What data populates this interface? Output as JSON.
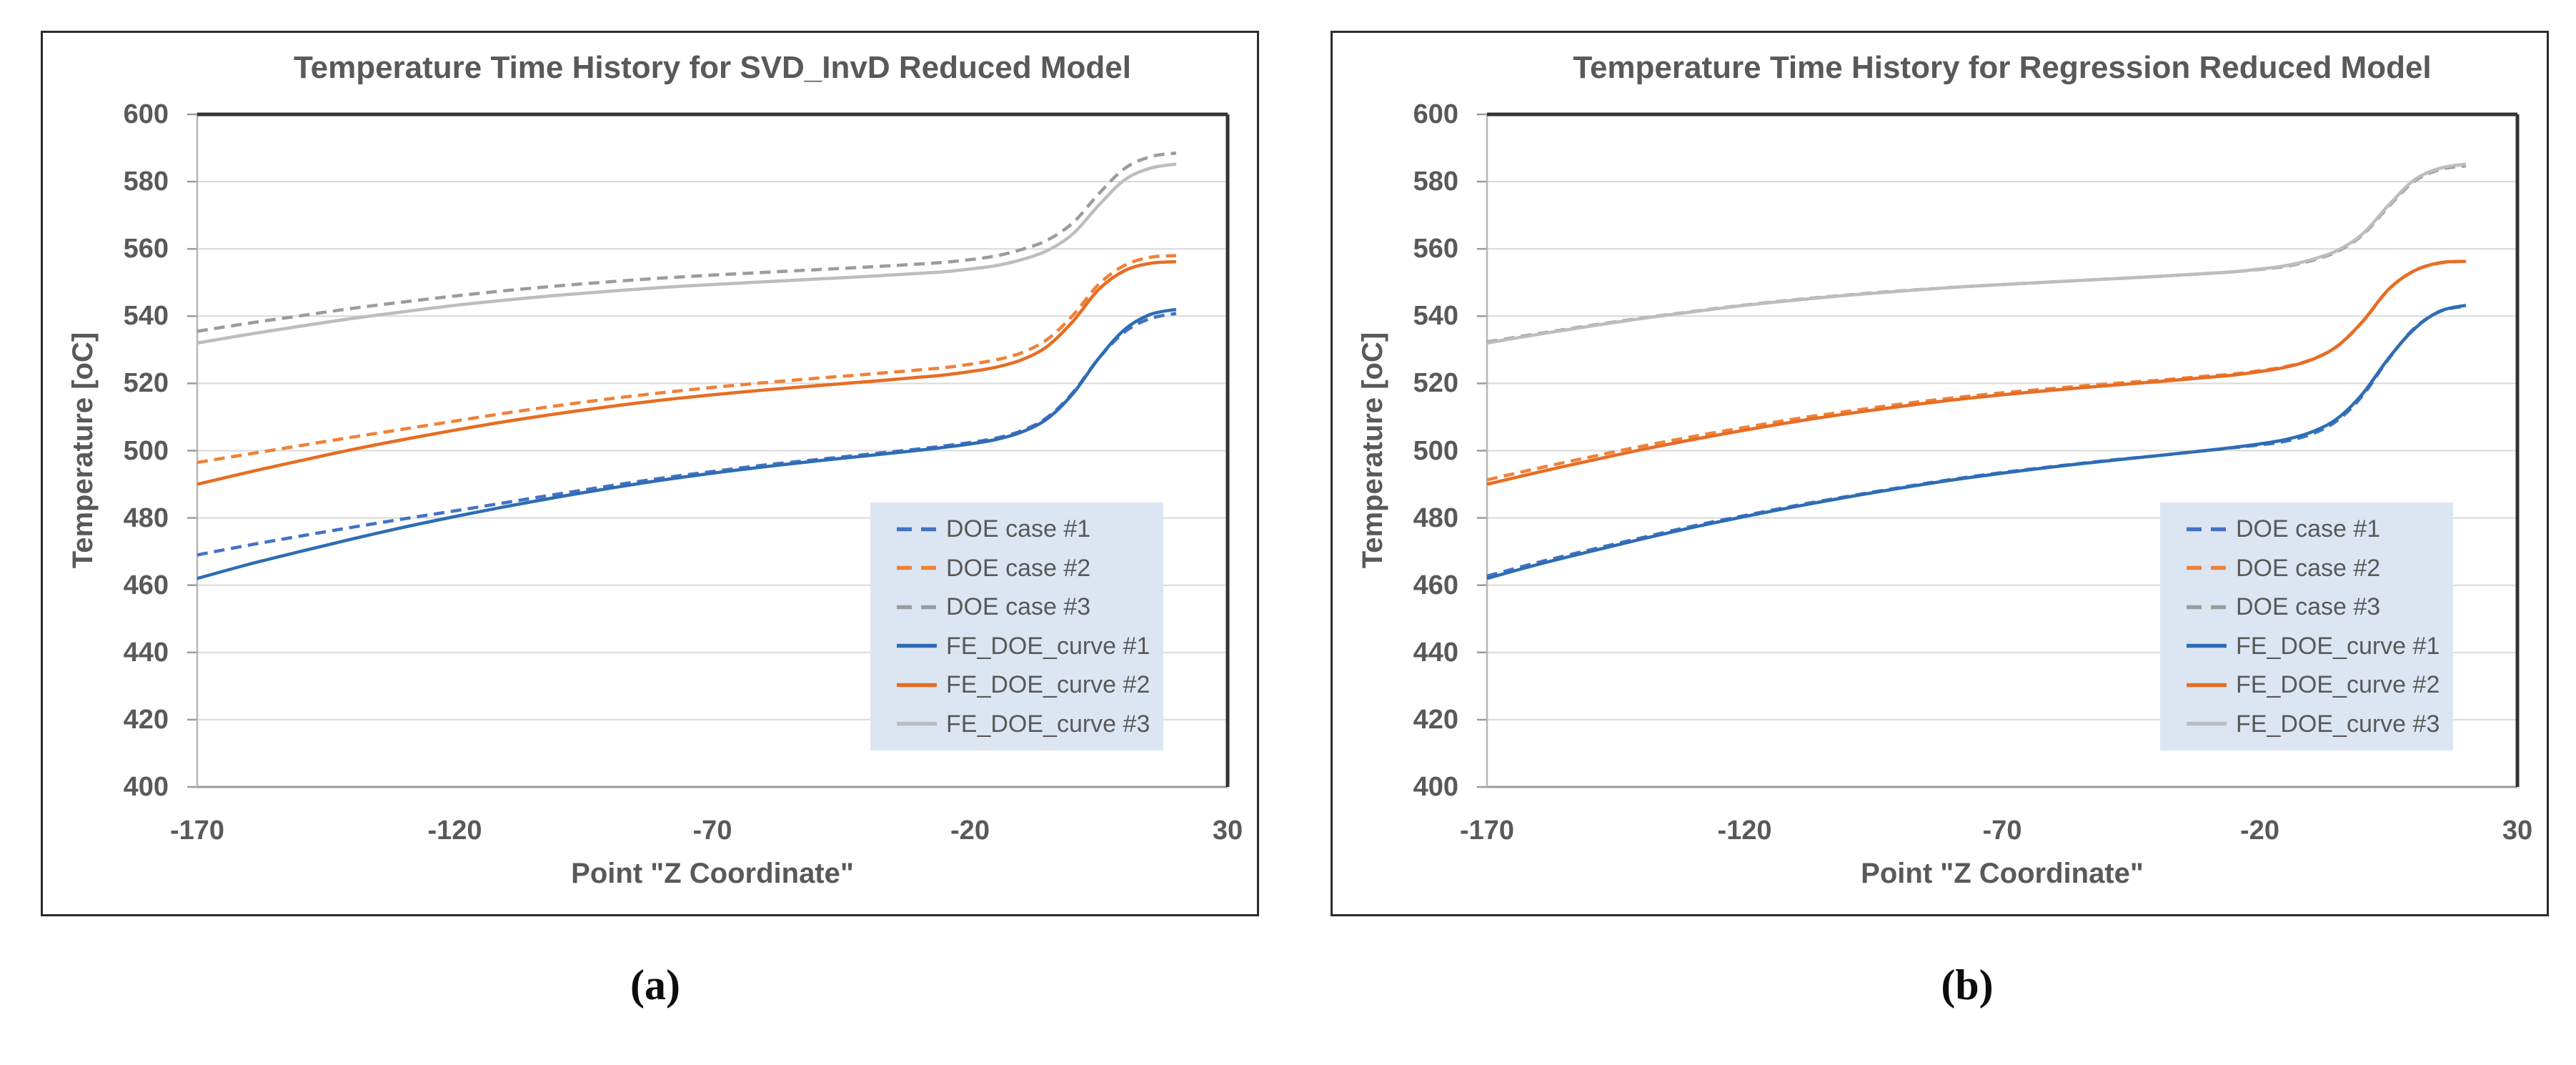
{
  "figure": {
    "caption_a": "(a)",
    "caption_b": "(b)"
  },
  "styles": {
    "legend_bg": "#dce6f2",
    "text_color": "#595959",
    "gridline_color": "#d9d9d9",
    "axis_dark": "#333333",
    "axis_gray": "#9b9b9b",
    "axis_light": "#b6b6b6"
  },
  "chart_data": [
    {
      "type": "line",
      "title": "Temperature Time History for SVD_InvD Reduced Model",
      "xlabel": "Point \"Z Coordinate\"",
      "ylabel": "Temperature [oC]",
      "xlim": [
        -170,
        30
      ],
      "ylim": [
        400,
        600
      ],
      "x_ticks": [
        -170,
        -120,
        -70,
        -20,
        30
      ],
      "y_ticks": [
        400,
        420,
        440,
        460,
        480,
        500,
        520,
        540,
        560,
        580,
        600
      ],
      "grid": "horizontal",
      "legend_position": "lower-right",
      "x": [
        -170,
        -160,
        -150,
        -140,
        -130,
        -120,
        -110,
        -100,
        -90,
        -80,
        -70,
        -60,
        -50,
        -40,
        -30,
        -25,
        -20,
        -15,
        -10,
        -5,
        0,
        5,
        10,
        15,
        20
      ],
      "series": [
        {
          "name": "DOE case #1",
          "color": "#4472c4",
          "style": "dashed",
          "y": [
            469,
            471.9,
            474.6,
            477.2,
            479.7,
            482.1,
            484.6,
            487.1,
            489.5,
            491.8,
            493.8,
            495.7,
            497.3,
            498.9,
            500.5,
            501.4,
            502.4,
            503.7,
            505.9,
            509.9,
            517.3,
            527.5,
            535.3,
            539.3,
            540.8
          ]
        },
        {
          "name": "DOE case #2",
          "color": "#f08138",
          "style": "dashed",
          "y": [
            496.5,
            499,
            501.5,
            504,
            506.4,
            508.8,
            511.2,
            513.4,
            515.4,
            517.2,
            518.8,
            520.2,
            521.5,
            522.7,
            524,
            524.7,
            525.7,
            527,
            529.1,
            533.1,
            540.3,
            549.5,
            555.1,
            557.5,
            558
          ]
        },
        {
          "name": "DOE case #3",
          "color": "#9c9c9c",
          "style": "dashed",
          "y": [
            535.5,
            537.9,
            540.1,
            542.3,
            544.2,
            546,
            547.6,
            549,
            550.2,
            551.3,
            552.2,
            553,
            553.8,
            554.6,
            555.5,
            556,
            556.8,
            557.9,
            559.8,
            562.6,
            567.8,
            576.4,
            583.9,
            587.4,
            588.5
          ]
        },
        {
          "name": "FE_DOE_curve #1",
          "color": "#2e6db4",
          "style": "solid",
          "y": [
            462,
            466.2,
            470,
            473.7,
            477.2,
            480.4,
            483.4,
            486.2,
            488.8,
            491.2,
            493.3,
            495.2,
            496.9,
            498.5,
            500.1,
            501,
            502,
            503.3,
            505.5,
            509.5,
            517,
            527.5,
            536,
            540.5,
            542
          ]
        },
        {
          "name": "FE_DOE_curve #2",
          "color": "#e76d24",
          "style": "solid",
          "y": [
            490,
            493.6,
            497,
            500.3,
            503.3,
            506.1,
            508.7,
            511,
            513.1,
            515,
            516.6,
            518,
            519.3,
            520.5,
            521.8,
            522.5,
            523.5,
            524.8,
            527,
            531,
            538.5,
            548,
            553.5,
            555.7,
            556.2
          ]
        },
        {
          "name": "FE_DOE_curve #3",
          "color": "#bdbdbd",
          "style": "solid",
          "y": [
            532,
            534.6,
            537,
            539.3,
            541.3,
            543.2,
            544.8,
            546.2,
            547.4,
            548.5,
            549.4,
            550.2,
            551,
            551.8,
            552.7,
            553.2,
            554,
            555,
            556.8,
            559.5,
            564.5,
            573,
            580.5,
            584,
            585.2
          ]
        }
      ]
    },
    {
      "type": "line",
      "title": "Temperature Time History for Regression Reduced Model",
      "xlabel": "Point \"Z Coordinate\"",
      "ylabel": "Temperature [oC]",
      "xlim": [
        -170,
        30
      ],
      "ylim": [
        400,
        600
      ],
      "x_ticks": [
        -170,
        -120,
        -70,
        -20,
        30
      ],
      "y_ticks": [
        400,
        420,
        440,
        460,
        480,
        500,
        520,
        540,
        560,
        580,
        600
      ],
      "grid": "horizontal",
      "legend_position": "lower-right",
      "x": [
        -170,
        -160,
        -150,
        -140,
        -130,
        -120,
        -110,
        -100,
        -90,
        -80,
        -70,
        -60,
        -50,
        -40,
        -30,
        -25,
        -20,
        -15,
        -10,
        -5,
        0,
        5,
        10,
        15,
        20
      ],
      "series": [
        {
          "name": "DOE case #1",
          "color": "#4472c4",
          "style": "dashed",
          "y": [
            462.7,
            466.8,
            470.5,
            474.1,
            477.6,
            480.7,
            483.7,
            486.4,
            489,
            491.4,
            493.5,
            495.3,
            497,
            498.5,
            500.1,
            500.9,
            501.7,
            502.8,
            504.9,
            508.9,
            516.5,
            527.3,
            536.4,
            541.4,
            543
          ]
        },
        {
          "name": "DOE case #2",
          "color": "#f08138",
          "style": "dashed",
          "y": [
            491.3,
            494.8,
            498.1,
            501.3,
            504.2,
            506.9,
            509.5,
            511.7,
            513.8,
            515.6,
            517.2,
            518.5,
            519.8,
            520.9,
            522.2,
            522.8,
            523.8,
            525,
            527.1,
            531,
            538.4,
            547.9,
            553.5,
            555.8,
            556.3
          ]
        },
        {
          "name": "DOE case #3",
          "color": "#9c9c9c",
          "style": "dashed",
          "y": [
            532.3,
            534.8,
            537.2,
            539.4,
            541.4,
            543.3,
            544.9,
            546.3,
            547.5,
            548.5,
            549.4,
            550.2,
            551,
            551.8,
            552.7,
            553.2,
            553.9,
            554.8,
            556.5,
            559.2,
            564.2,
            572.6,
            580.1,
            583.6,
            584.7
          ]
        },
        {
          "name": "FE_DOE_curve #1",
          "color": "#2e6db4",
          "style": "solid",
          "y": [
            462,
            466.2,
            470,
            473.7,
            477.2,
            480.4,
            483.4,
            486.2,
            488.8,
            491.2,
            493.3,
            495.2,
            496.9,
            498.5,
            500.1,
            501,
            502,
            503.3,
            505.5,
            509.5,
            517,
            527.5,
            536.2,
            541.5,
            543.2
          ]
        },
        {
          "name": "FE_DOE_curve #2",
          "color": "#e76d24",
          "style": "solid",
          "y": [
            490,
            493.6,
            497,
            500.3,
            503.3,
            506.1,
            508.7,
            511,
            513.1,
            515,
            516.6,
            518,
            519.3,
            520.5,
            521.8,
            522.5,
            523.5,
            524.8,
            527,
            531,
            538.5,
            548,
            553.5,
            555.9,
            556.3
          ]
        },
        {
          "name": "FE_DOE_curve #3",
          "color": "#bdbdbd",
          "style": "solid",
          "y": [
            532,
            534.6,
            537,
            539.3,
            541.3,
            543.2,
            544.8,
            546.2,
            547.4,
            548.5,
            549.4,
            550.2,
            551,
            551.8,
            552.7,
            553.2,
            554,
            555,
            556.8,
            559.5,
            564.5,
            573,
            580.5,
            584,
            585.2
          ]
        }
      ]
    }
  ]
}
